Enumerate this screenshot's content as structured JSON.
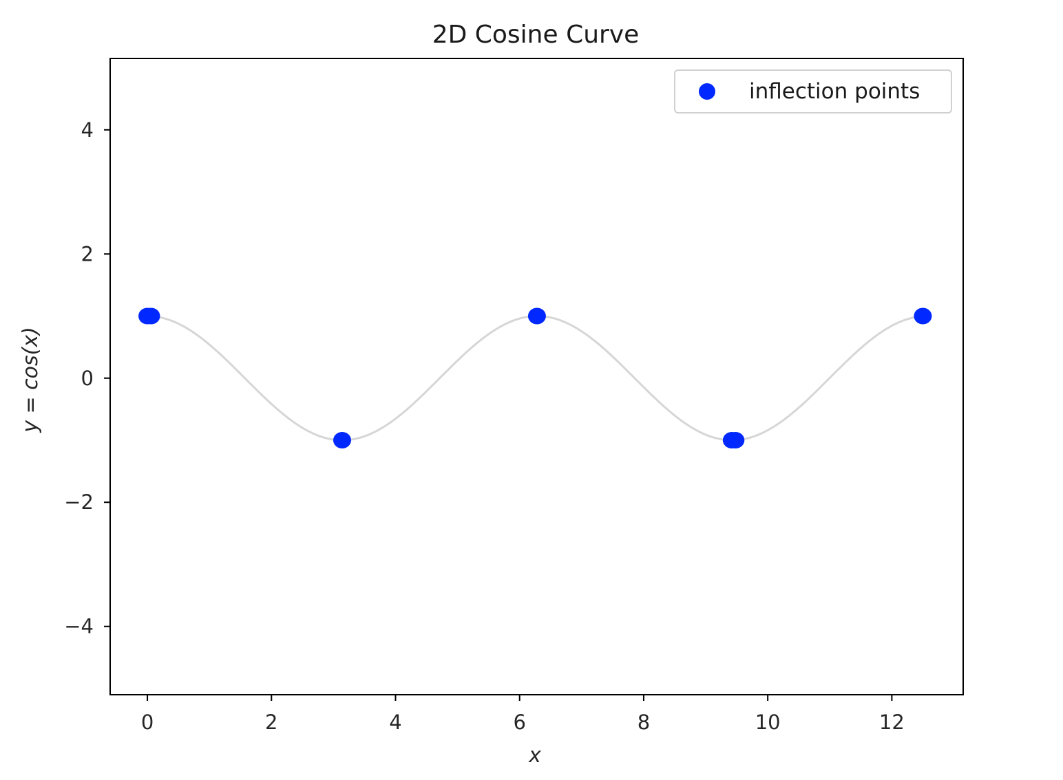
{
  "chart_data": {
    "type": "scatter",
    "title": "2D Cosine Curve",
    "xlabel": "x",
    "ylabel": "y = cos(x)",
    "xlim": [
      -0.6,
      13.15
    ],
    "ylim": [
      -5.1,
      5.15
    ],
    "xticks": [
      0,
      2,
      4,
      6,
      8,
      10,
      12
    ],
    "xtick_labels": [
      "0",
      "2",
      "4",
      "6",
      "8",
      "10",
      "12"
    ],
    "yticks": [
      4,
      2,
      0,
      -2,
      -4
    ],
    "ytick_labels": [
      "4",
      "2",
      "0",
      "−2",
      "−4"
    ],
    "grid": false,
    "legend": {
      "position": "top-right",
      "entries": [
        "inflection points"
      ]
    },
    "curve": {
      "function": "cos",
      "x_range": [
        0,
        12.5
      ],
      "color": "#d6d6d6"
    },
    "series": [
      {
        "name": "inflection points",
        "color": "#0028ff",
        "points": [
          {
            "x": 0.0,
            "y": 1.0
          },
          {
            "x": 0.06,
            "y": 1.0
          },
          {
            "x": 3.14,
            "y": -1.0
          },
          {
            "x": 6.28,
            "y": 1.0
          },
          {
            "x": 9.42,
            "y": -1.0
          },
          {
            "x": 9.48,
            "y": -1.0
          },
          {
            "x": 12.5,
            "y": 1.0
          }
        ]
      }
    ]
  }
}
